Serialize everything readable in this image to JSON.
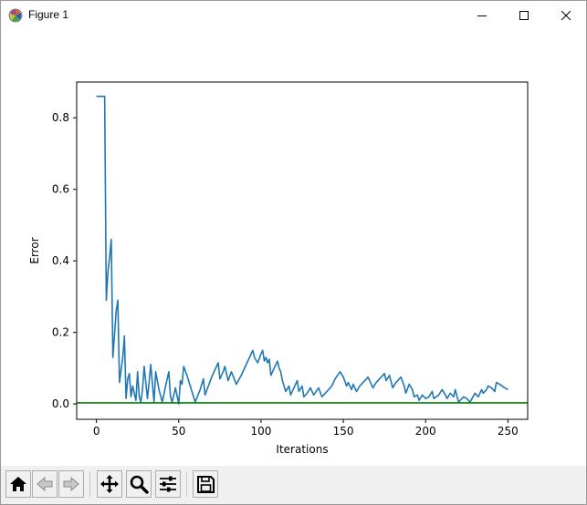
{
  "window": {
    "title": "Figure 1",
    "app_icon": "matplotlib-logo-icon",
    "controls": [
      "minimize-icon",
      "maximize-icon",
      "close-icon"
    ]
  },
  "toolbar": {
    "buttons": [
      {
        "name": "home",
        "icon": "home-icon",
        "enabled": true
      },
      {
        "name": "back",
        "icon": "arrow-left-icon",
        "enabled": false
      },
      {
        "name": "forward",
        "icon": "arrow-right-icon",
        "enabled": false
      },
      {
        "name": "pan",
        "icon": "move-icon",
        "enabled": true
      },
      {
        "name": "zoom",
        "icon": "magnifier-icon",
        "enabled": true
      },
      {
        "name": "configure-subplots",
        "icon": "sliders-icon",
        "enabled": true
      },
      {
        "name": "save",
        "icon": "floppy-disk-icon",
        "enabled": true
      }
    ]
  },
  "chart_data": {
    "type": "line",
    "title": "",
    "xlabel": "Iterations",
    "ylabel": "Error",
    "xlim": [
      -12,
      262
    ],
    "ylim": [
      -0.043,
      0.9
    ],
    "xticks": [
      0,
      50,
      100,
      150,
      200,
      250
    ],
    "xtick_labels": [
      "0",
      "50",
      "100",
      "150",
      "200",
      "250"
    ],
    "yticks": [
      0.0,
      0.2,
      0.4,
      0.6,
      0.8
    ],
    "ytick_labels": [
      "0.0",
      "0.2",
      "0.4",
      "0.6",
      "0.8"
    ],
    "grid": false,
    "legend": "none",
    "series": [
      {
        "color": "#1f77b4",
        "x": [
          0,
          3,
          5,
          6,
          7,
          8,
          9,
          10,
          12,
          13,
          14,
          16,
          17,
          18,
          19,
          20,
          21,
          22,
          24,
          25,
          26,
          27,
          28,
          29,
          30,
          31,
          32,
          33,
          35,
          36,
          38,
          40,
          42,
          44,
          45,
          46,
          48,
          50,
          51,
          52,
          53,
          55,
          57,
          60,
          63,
          65,
          66,
          68,
          70,
          72,
          74,
          75,
          77,
          78,
          80,
          82,
          85,
          88,
          90,
          93,
          95,
          96,
          98,
          100,
          101,
          102,
          103,
          104,
          105,
          106,
          108,
          110,
          111,
          112,
          113,
          115,
          117,
          118,
          120,
          122,
          123,
          125,
          126,
          128,
          130,
          132,
          135,
          137,
          140,
          143,
          145,
          148,
          150,
          152,
          153,
          155,
          156,
          158,
          160,
          162,
          165,
          168,
          170,
          173,
          175,
          176,
          178,
          180,
          182,
          185,
          187,
          188,
          190,
          192,
          193,
          195,
          196,
          198,
          200,
          202,
          204,
          205,
          208,
          210,
          212,
          213,
          215,
          217,
          218,
          220,
          222,
          223,
          225,
          227,
          230,
          232,
          234,
          235,
          237,
          238,
          240,
          242,
          243,
          245,
          248,
          250
        ],
        "y": [
          0.86,
          0.86,
          0.86,
          0.29,
          0.37,
          0.41,
          0.46,
          0.13,
          0.26,
          0.29,
          0.06,
          0.13,
          0.19,
          0.015,
          0.07,
          0.085,
          0.02,
          0.05,
          0.01,
          0.09,
          0.02,
          0.005,
          0.04,
          0.105,
          0.06,
          0.015,
          0.06,
          0.11,
          0.005,
          0.09,
          0.04,
          0.005,
          0.05,
          0.09,
          0.02,
          0.005,
          0.045,
          0.0,
          0.065,
          0.055,
          0.105,
          0.08,
          0.05,
          0.005,
          0.04,
          0.07,
          0.025,
          0.05,
          0.075,
          0.095,
          0.115,
          0.07,
          0.09,
          0.105,
          0.065,
          0.09,
          0.055,
          0.08,
          0.1,
          0.13,
          0.15,
          0.13,
          0.115,
          0.14,
          0.15,
          0.12,
          0.13,
          0.115,
          0.125,
          0.08,
          0.1,
          0.12,
          0.1,
          0.09,
          0.065,
          0.035,
          0.05,
          0.025,
          0.045,
          0.065,
          0.035,
          0.05,
          0.02,
          0.03,
          0.045,
          0.025,
          0.045,
          0.02,
          0.035,
          0.05,
          0.07,
          0.09,
          0.075,
          0.05,
          0.06,
          0.04,
          0.055,
          0.035,
          0.05,
          0.06,
          0.075,
          0.045,
          0.06,
          0.075,
          0.085,
          0.065,
          0.08,
          0.045,
          0.06,
          0.075,
          0.05,
          0.03,
          0.055,
          0.04,
          0.02,
          0.025,
          0.01,
          0.025,
          0.015,
          0.02,
          0.035,
          0.015,
          0.025,
          0.04,
          0.025,
          0.015,
          0.03,
          0.02,
          0.04,
          0.005,
          0.015,
          0.02,
          0.015,
          0.005,
          0.03,
          0.02,
          0.04,
          0.03,
          0.04,
          0.05,
          0.045,
          0.035,
          0.06,
          0.055,
          0.045,
          0.04
        ]
      },
      {
        "color": "#008000",
        "x": [
          -12,
          262
        ],
        "y": [
          0.003,
          0.003
        ]
      }
    ]
  }
}
